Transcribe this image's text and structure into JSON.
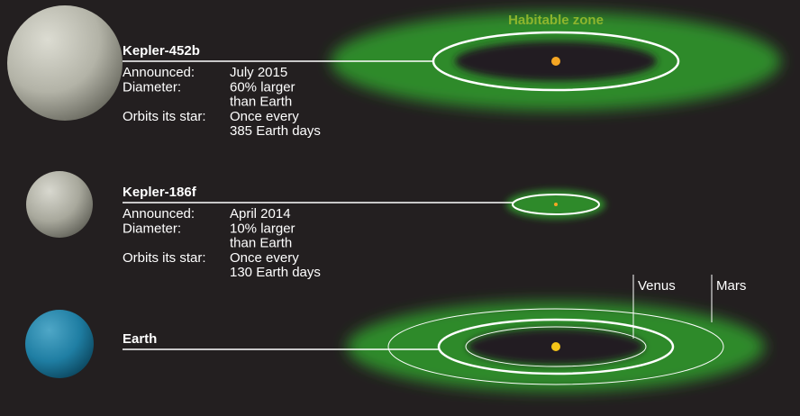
{
  "habitable_zone_label": "Habitable zone",
  "planets": [
    {
      "name": "Kepler-452b",
      "rows": [
        [
          "Announced:",
          "July 2015"
        ],
        [
          "Diameter:",
          "60% larger"
        ],
        [
          "",
          "than Earth"
        ],
        [
          "Orbits its star:",
          "Once every"
        ],
        [
          "",
          "385 Earth days"
        ]
      ]
    },
    {
      "name": "Kepler-186f",
      "rows": [
        [
          "Announced:",
          "April 2014"
        ],
        [
          "Diameter:",
          "10% larger"
        ],
        [
          "",
          "than Earth"
        ],
        [
          "Orbits its star:",
          "Once every"
        ],
        [
          "",
          "130 Earth days"
        ]
      ]
    },
    {
      "name": "Earth",
      "rows": []
    }
  ],
  "orbit_labels": [
    "Venus",
    "Mars"
  ]
}
